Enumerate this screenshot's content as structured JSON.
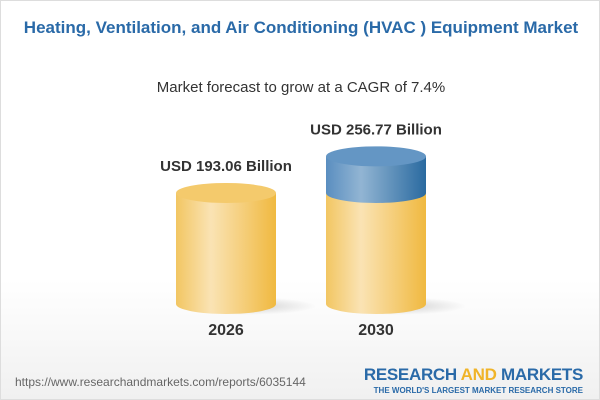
{
  "title": "Heating, Ventilation, and Air Conditioning (HVAC ) Equipment Market",
  "subtitle": "Market forecast to grow at a CAGR of 7.4%",
  "chart_data": {
    "type": "bar",
    "style": "3d-cylinder",
    "categories": [
      "2026",
      "2030"
    ],
    "values": [
      193.06,
      256.77
    ],
    "data_labels": [
      "USD 193.06 Billion",
      "USD 256.77 Billion"
    ],
    "unit": "USD Billion",
    "cagr": "7.4%",
    "colors": {
      "base": "#f2c14e",
      "growth": "#3d76a8"
    }
  },
  "footer": {
    "url": "https://www.researchandmarkets.com/reports/6035144",
    "logo_part1": "RESEARCH ",
    "logo_part2": "AND",
    "logo_part3": " MARKETS",
    "tagline": "THE WORLD'S LARGEST MARKET RESEARCH STORE"
  }
}
